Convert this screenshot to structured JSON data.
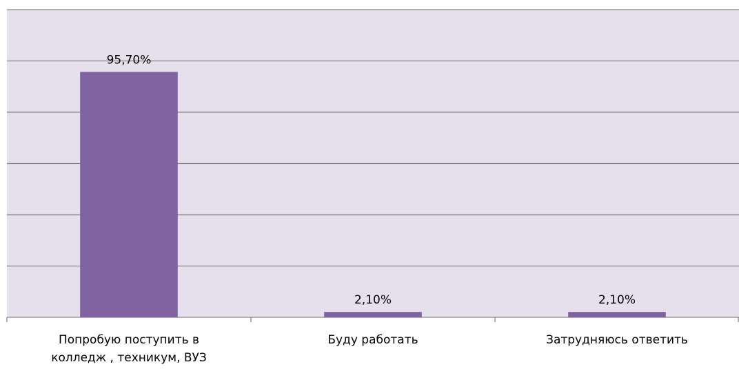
{
  "chart_data": {
    "type": "bar",
    "categories": [
      "Попробую поступить в колледж , техникум, ВУЗ",
      "Буду работать",
      "Затрудняюсь ответить"
    ],
    "values": [
      95.7,
      2.1,
      2.1
    ],
    "value_labels": [
      "95,70%",
      "2,10%",
      "2,10%"
    ],
    "color": "#8064a2",
    "ylim": [
      0,
      120
    ],
    "yticks": [
      0,
      20,
      40,
      60,
      80,
      100,
      120
    ],
    "grid": true
  }
}
